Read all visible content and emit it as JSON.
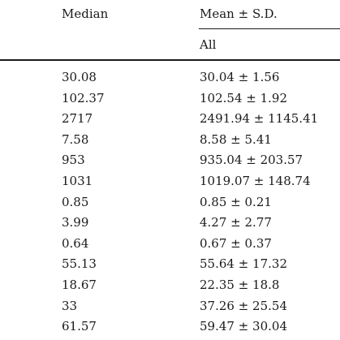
{
  "header": {
    "median": "Median",
    "mean_sd": "Mean ± S.D.",
    "all": "All"
  },
  "rows": [
    {
      "median": "30.08",
      "mean_sd": "30.04 ± 1.56"
    },
    {
      "median": "102.37",
      "mean_sd": "102.54 ± 1.92"
    },
    {
      "median": "2717",
      "mean_sd": "2491.94 ± 1145.41"
    },
    {
      "median": "7.58",
      "mean_sd": "8.58 ± 5.41"
    },
    {
      "median": "953",
      "mean_sd": "935.04 ± 203.57"
    },
    {
      "median": "1031",
      "mean_sd": "1019.07 ± 148.74"
    },
    {
      "median": "0.85",
      "mean_sd": "0.85 ± 0.21"
    },
    {
      "median": "3.99",
      "mean_sd": "4.27 ± 2.77"
    },
    {
      "median": "0.64",
      "mean_sd": "0.67 ± 0.37"
    },
    {
      "median": "55.13",
      "mean_sd": "55.64 ± 17.32"
    },
    {
      "median": "18.67",
      "mean_sd": "22.35 ± 18.8"
    },
    {
      "median": "33",
      "mean_sd": "37.26 ± 25.54"
    },
    {
      "median": "61.57",
      "mean_sd": "59.47 ± 30.04"
    }
  ]
}
